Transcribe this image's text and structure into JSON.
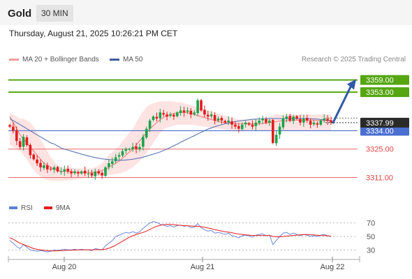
{
  "header": {
    "title": "Gold",
    "timeframe": "30 MIN"
  },
  "datetime": "Thursday, August 21, 2025 10:26:21 PM CET",
  "legend": {
    "bollinger": "MA 20 + Bollinger Bands",
    "ma50": "MA 50",
    "credit": "Research © 2025 Trading Central"
  },
  "rsi_legend": {
    "rsi": "RSI",
    "ma": "9MA"
  },
  "colors": {
    "bull": "#1aa34a",
    "bear": "#e31c1c",
    "band": "#fdd9d9",
    "ma20": "#f07575",
    "ma50": "#4a6bb0",
    "resistance": "#55a611",
    "support_line": "#e46a6a",
    "pivot": "#4a6fd0",
    "arrow": "#2f5aa8",
    "price_box": "#2a2a2a"
  },
  "chart_data": [
    {
      "type": "candlestick",
      "title": "Gold",
      "timeframe": "30 MIN",
      "x_ticks": [
        "Aug 20",
        "Aug 21",
        "Aug 22"
      ],
      "ylim": [
        3305,
        3364
      ],
      "last_price": 3337.99,
      "levels": [
        {
          "value": 3359.0,
          "label": "3359.00",
          "kind": "resistance"
        },
        {
          "value": 3353.0,
          "label": "3353.00",
          "kind": "resistance"
        },
        {
          "value": 3334.0,
          "label": "3334.00",
          "kind": "pivot"
        },
        {
          "value": 3325.0,
          "label": "3325.00",
          "kind": "support"
        },
        {
          "value": 3311.0,
          "label": "3311.00",
          "kind": "support"
        }
      ],
      "last_price_label": "3337.99",
      "close_path": [
        3336,
        3334,
        3329,
        3326,
        3331,
        3327,
        3322,
        3320,
        3318,
        3316,
        3317,
        3315,
        3315,
        3316,
        3314,
        3314,
        3315,
        3314,
        3313,
        3314,
        3313,
        3314,
        3313,
        3313,
        3312,
        3314,
        3313,
        3312,
        3316,
        3318,
        3319,
        3321,
        3322,
        3324,
        3325,
        3325,
        3326,
        3325,
        3326,
        3331,
        3335,
        3339,
        3341,
        3340,
        3343,
        3342,
        3341,
        3342,
        3341,
        3343,
        3344,
        3343,
        3344,
        3342,
        3343,
        3349,
        3344,
        3342,
        3341,
        3342,
        3339,
        3340,
        3339,
        3338,
        3339,
        3337,
        3336,
        3335,
        3337,
        3338,
        3337,
        3336,
        3338,
        3339,
        3340,
        3338,
        3339,
        3328,
        3332,
        3336,
        3340,
        3341,
        3339,
        3341,
        3340,
        3338,
        3340,
        3339,
        3337,
        3338,
        3337,
        3339,
        3340,
        3339,
        3338
      ],
      "ma20": [
        3341,
        3338,
        3335,
        3332,
        3330,
        3328,
        3326,
        3324,
        3322,
        3320,
        3318,
        3317,
        3316,
        3315,
        3314.5,
        3314,
        3314,
        3314,
        3314,
        3313.5,
        3313.5,
        3313.5,
        3313.5,
        3313.5,
        3313.5,
        3313.5,
        3314,
        3314.5,
        3315,
        3316,
        3317,
        3318,
        3319,
        3320.5,
        3322,
        3323.5,
        3325,
        3327,
        3329,
        3331,
        3333,
        3335,
        3336.5,
        3338,
        3339.5,
        3340.5,
        3341.5,
        3342,
        3342.5,
        3342.8,
        3343,
        3343,
        3342.8,
        3342.5,
        3342,
        3341.5,
        3341,
        3340.5,
        3340,
        3339.5,
        3339,
        3338.5,
        3338.2,
        3338,
        3337.8,
        3337.6,
        3337.5,
        3337.5,
        3337.5,
        3337.5,
        3337.4,
        3337.3,
        3337.3,
        3337.4,
        3337.6,
        3337.8,
        3338,
        3338.2,
        3338.5,
        3338.8,
        3339,
        3339,
        3339,
        3339.2,
        3339.2,
        3339.2,
        3339.2,
        3339.2,
        3339.2,
        3339.2,
        3339,
        3339,
        3339,
        3339,
        3339
      ],
      "band_upper": [
        3343,
        3342,
        3341,
        3340,
        3340,
        3339,
        3338,
        3336,
        3333,
        3330,
        3327,
        3324,
        3321,
        3319,
        3317,
        3316,
        3316,
        3316,
        3316,
        3315.5,
        3315.5,
        3315.5,
        3315.5,
        3315.5,
        3315.5,
        3316,
        3317,
        3318,
        3320,
        3322,
        3323.5,
        3325,
        3326.5,
        3329,
        3331,
        3333,
        3335,
        3338,
        3341,
        3343.5,
        3345.5,
        3347,
        3347.5,
        3348,
        3348.5,
        3348.5,
        3348.5,
        3348.5,
        3348.5,
        3348,
        3348,
        3347.5,
        3347,
        3346.5,
        3346,
        3345.5,
        3345,
        3344.5,
        3344,
        3343.5,
        3343,
        3342.5,
        3342,
        3341.5,
        3341,
        3340.5,
        3340,
        3339.5,
        3339.5,
        3339.5,
        3339.5,
        3339.5,
        3339.5,
        3339.5,
        3339.5,
        3340,
        3341,
        3341.5,
        3342,
        3342,
        3342,
        3342,
        3342,
        3342,
        3342,
        3342,
        3342,
        3342,
        3342,
        3342,
        3342,
        3342,
        3342,
        3342,
        3342
      ],
      "band_lower": [
        3327,
        3326,
        3325,
        3324,
        3322,
        3320,
        3317,
        3314.5,
        3313,
        3311.5,
        3310.5,
        3309.8,
        3309.5,
        3309.5,
        3309.5,
        3309.5,
        3309.5,
        3309.6,
        3309.8,
        3310,
        3310.2,
        3310.5,
        3310.8,
        3311,
        3311.2,
        3311.4,
        3311.6,
        3311.8,
        3312,
        3312.2,
        3312.5,
        3312.8,
        3313,
        3313.5,
        3314,
        3315,
        3316,
        3317.5,
        3319,
        3321,
        3323,
        3325.5,
        3328,
        3330.5,
        3333,
        3334.5,
        3335.5,
        3336,
        3336.5,
        3337,
        3337,
        3337,
        3337,
        3337,
        3336.8,
        3336.5,
        3336.2,
        3336,
        3335.8,
        3335.5,
        3335.3,
        3335,
        3334.8,
        3334.5,
        3334.3,
        3334.2,
        3334,
        3334,
        3334,
        3334,
        3334,
        3334,
        3334,
        3334,
        3334,
        3334,
        3334,
        3334,
        3334,
        3334,
        3334,
        3334,
        3334,
        3334,
        3334,
        3334,
        3334,
        3334,
        3334,
        3334,
        3334,
        3334,
        3334,
        3334,
        3334
      ],
      "ma50": [
        3340,
        3339,
        3338,
        3337,
        3336,
        3335,
        3334,
        3333,
        3332,
        3331,
        3330,
        3329,
        3328,
        3327.5,
        3326.5,
        3325.5,
        3325,
        3324.5,
        3324,
        3323.5,
        3323,
        3322.5,
        3322,
        3321.6,
        3321.2,
        3320.8,
        3320.5,
        3320.2,
        3320,
        3319.8,
        3319.7,
        3319.6,
        3319.5,
        3319.5,
        3319.6,
        3319.8,
        3320,
        3320.3,
        3320.6,
        3321,
        3321.5,
        3322,
        3322.5,
        3323,
        3323.6,
        3324.3,
        3325,
        3325.8,
        3326.6,
        3327.4,
        3328.3,
        3329.2,
        3330,
        3330.8,
        3331.6,
        3332.4,
        3333.2,
        3334,
        3334.8,
        3335.4,
        3336,
        3336.5,
        3337,
        3337.4,
        3337.8,
        3338.2,
        3338.5,
        3338.8,
        3339,
        3339.2,
        3339.4,
        3339.6,
        3339.7,
        3339.8,
        3339.9,
        3340,
        3340,
        3340,
        3340,
        3340,
        3340,
        3340,
        3340,
        3340,
        3340,
        3340,
        3340,
        3340,
        3339.9,
        3339.8,
        3339.7,
        3339.5,
        3339.3,
        3339.1,
        3339
      ],
      "forecast_arrow": {
        "from": 3337.99,
        "to": 3359.0
      }
    },
    {
      "type": "line",
      "title": "RSI",
      "series": [
        {
          "name": "RSI",
          "values": [
            44,
            40,
            35,
            32,
            38,
            34,
            30,
            29,
            28,
            29,
            28,
            27,
            28,
            30,
            29,
            30,
            31,
            30,
            30,
            31,
            30,
            31,
            30,
            30,
            29,
            32,
            31,
            30,
            36,
            40,
            44,
            50,
            52,
            54,
            56,
            55,
            57,
            55,
            57,
            62,
            66,
            70,
            72,
            71,
            68,
            67,
            65,
            66,
            64,
            66,
            67,
            65,
            66,
            63,
            64,
            69,
            63,
            60,
            58,
            59,
            55,
            56,
            55,
            53,
            55,
            51,
            50,
            48,
            51,
            52,
            51,
            49,
            52,
            53,
            54,
            51,
            52,
            38,
            44,
            50,
            55,
            56,
            53,
            55,
            53,
            51,
            53,
            52,
            50,
            51,
            50,
            52,
            53,
            51,
            50
          ]
        },
        {
          "name": "9MA",
          "values": [
            48,
            46,
            43,
            40,
            38,
            36,
            34,
            32,
            31,
            30,
            29.5,
            29,
            28.5,
            28.5,
            28.7,
            29,
            29.2,
            29.4,
            29.6,
            29.8,
            30,
            30.1,
            30.2,
            30.2,
            30.1,
            30.3,
            30.4,
            30.5,
            31.2,
            32.5,
            34.5,
            37,
            40,
            43,
            46,
            49,
            51,
            53,
            54.5,
            56,
            58,
            60.5,
            63,
            65,
            66.5,
            67.5,
            68,
            67.8,
            67.5,
            67,
            66.5,
            66,
            65.8,
            65.5,
            65.2,
            65,
            64.5,
            63.5,
            62.5,
            61.5,
            60,
            59,
            58,
            57,
            56.5,
            55.5,
            54.5,
            53.5,
            53,
            52.5,
            52,
            51.5,
            51.5,
            51.5,
            51.5,
            51.5,
            51.5,
            50,
            49.5,
            49.5,
            50,
            50.5,
            51,
            51.5,
            52,
            52.5,
            52.8,
            53,
            52.6,
            52.2,
            51.8,
            51.5,
            51.3,
            51,
            50.5
          ]
        }
      ],
      "ylim": [
        20,
        80
      ],
      "y_ticks": [
        "70",
        "50",
        "30"
      ],
      "reference_lines": [
        70,
        50,
        30
      ]
    }
  ]
}
